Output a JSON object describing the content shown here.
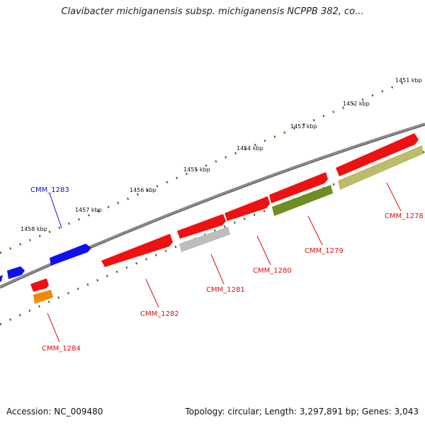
{
  "header": {
    "title": "Clavibacter michiganensis subsp. michiganensis NCPPB 382, co..."
  },
  "footer": {
    "accession": "Accession: NC_009480",
    "topology": "Topology: circular; Length: 3,297,891 bp; Genes: 3,043"
  },
  "colors": {
    "backbone": "#8a8a8a",
    "tick": "#2a7a1a",
    "red": "#ee1111",
    "blue": "#1010ee",
    "orange": "#f08a00",
    "gray": "#bdbdbd",
    "olive": "#6e8e22",
    "khaki": "#bdbb6c",
    "label_red": "#dd1111",
    "label_blue": "#1111cc"
  },
  "scale": {
    "labels": [
      "1451 kbp",
      "1452 kbp",
      "1453 kbp",
      "1454 kbp",
      "1455 kbp",
      "1456 kbp",
      "1457 kbp",
      "1458 kbp"
    ]
  },
  "genes": [
    {
      "name": "CMM_1278",
      "label": "CMM_1278"
    },
    {
      "name": "CMM_1279",
      "label": "CMM_1279"
    },
    {
      "name": "CMM_1280",
      "label": "CMM_1280"
    },
    {
      "name": "CMM_1281",
      "label": "CMM_1281"
    },
    {
      "name": "CMM_1282",
      "label": "CMM_1282"
    },
    {
      "name": "CMM_1283",
      "label": "CMM_1283"
    },
    {
      "name": "CMM_1284",
      "label": "CMM_1284"
    }
  ]
}
